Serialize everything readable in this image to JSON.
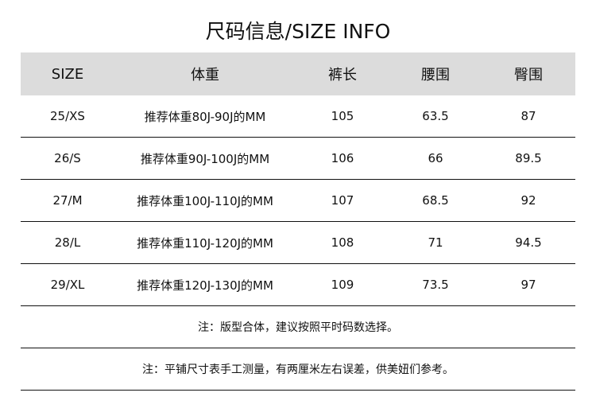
{
  "title": "尺码信息/SIZE INFO",
  "table": {
    "headers": [
      "SIZE",
      "体重",
      "裤长",
      "腰围",
      "臀围"
    ],
    "rows": [
      [
        "25/XS",
        "推荐体重80J-90J的MM",
        "105",
        "63.5",
        "87"
      ],
      [
        "26/S",
        "推荐体重90J-100J的MM",
        "106",
        "66",
        "89.5"
      ],
      [
        "27/M",
        "推荐体重100J-110J的MM",
        "107",
        "68.5",
        "92"
      ],
      [
        "28/L",
        "推荐体重110J-120J的MM",
        "108",
        "71",
        "94.5"
      ],
      [
        "29/XL",
        "推荐体重120J-130J的MM",
        "109",
        "73.5",
        "97"
      ]
    ]
  },
  "notes": [
    "注：版型合体，建议按照平时码数选择。",
    "注：平铺尺寸表手工测量，有两厘米左右误差，供美妞们参考。"
  ],
  "colors": {
    "header_bg": "#dcdcdc",
    "rule": "#111111"
  }
}
